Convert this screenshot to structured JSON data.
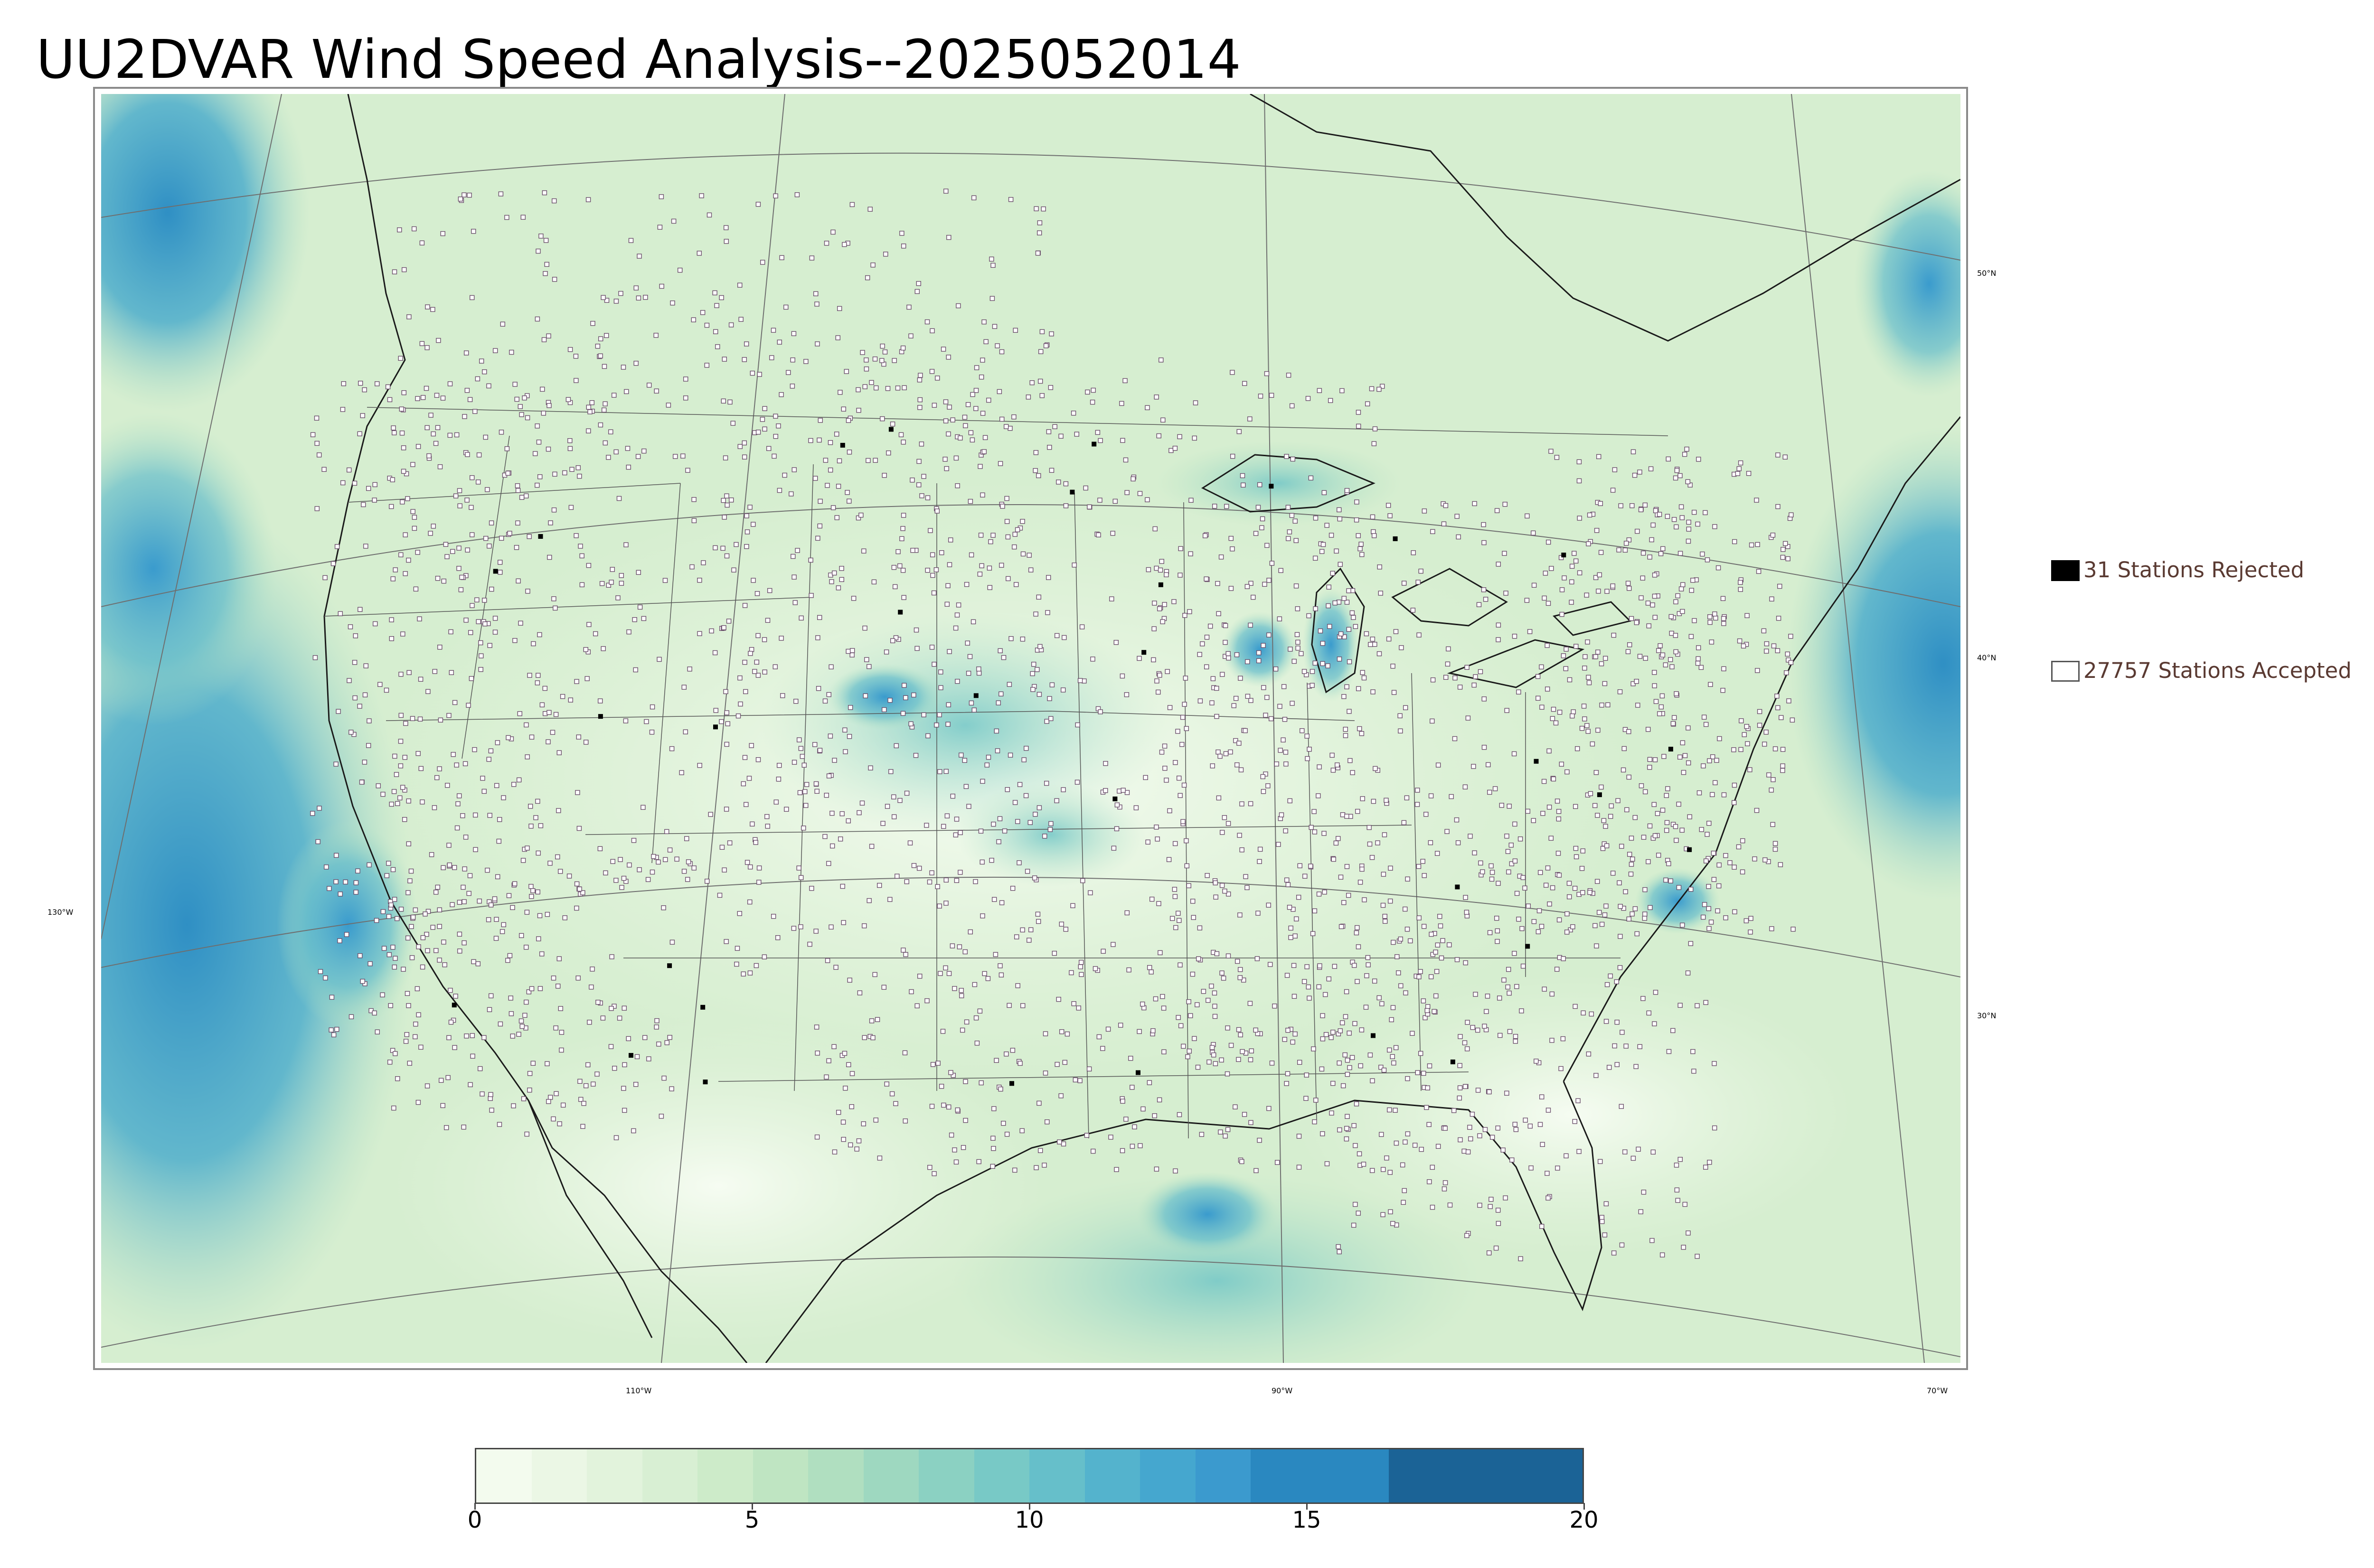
{
  "title": "UU2DVAR Wind Speed Analysis--2025052014",
  "axes": {
    "lat_labels": [
      "50°N",
      "40°N",
      "30°N"
    ],
    "lon_labels": [
      "130°W",
      "110°W",
      "90°W",
      "70°W"
    ]
  },
  "legend": {
    "rejected": {
      "label": "31 Stations Rejected",
      "count": 31,
      "swatch_color": "#000000"
    },
    "accepted": {
      "label": "27757 Stations Accepted",
      "count": 27757,
      "swatch_color": "#ffffff"
    }
  },
  "colorbar": {
    "ticks": [
      "0",
      "5",
      "10",
      "15",
      "20"
    ],
    "range": [
      0,
      20
    ],
    "bands": [
      {
        "from": 0,
        "to": 1,
        "color": "#f3fbee"
      },
      {
        "from": 1,
        "to": 2,
        "color": "#ebf7e5"
      },
      {
        "from": 2,
        "to": 3,
        "color": "#e2f3dc"
      },
      {
        "from": 3,
        "to": 4,
        "color": "#d8efd3"
      },
      {
        "from": 4,
        "to": 5,
        "color": "#cdebc9"
      },
      {
        "from": 5,
        "to": 6,
        "color": "#bfe5c2"
      },
      {
        "from": 6,
        "to": 7,
        "color": "#b0dfc0"
      },
      {
        "from": 7,
        "to": 8,
        "color": "#9ed8c0"
      },
      {
        "from": 8,
        "to": 9,
        "color": "#8bd1c2"
      },
      {
        "from": 9,
        "to": 10,
        "color": "#78c9c6"
      },
      {
        "from": 10,
        "to": 11,
        "color": "#66bfca"
      },
      {
        "from": 11,
        "to": 12,
        "color": "#54b3cd"
      },
      {
        "from": 12,
        "to": 13,
        "color": "#45a7cf"
      },
      {
        "from": 13,
        "to": 14,
        "color": "#3b9ace"
      },
      {
        "from": 14,
        "to": 16.5,
        "color": "#2a88c0"
      },
      {
        "from": 16.5,
        "to": 20,
        "color": "#1b6396"
      }
    ]
  },
  "colors": {
    "background_field": "#d6eed0",
    "ocean_strong": "#3f9fd0",
    "ocean_medium": "#7fc7c9",
    "coast_line": "#1a1a1a",
    "state_line": "#555555",
    "graticule": "#6e6e6e",
    "station_marker": "#6b4f6b"
  }
}
